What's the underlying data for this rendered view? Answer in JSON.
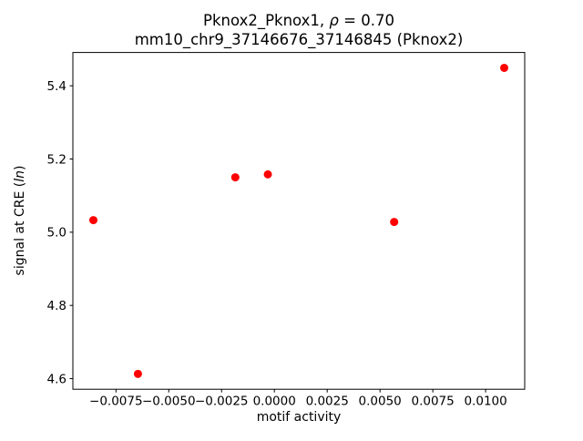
{
  "figure": {
    "title_line1_prefix": "Pknox2_Pknox1, ",
    "title_rho": "ρ",
    "title_line1_suffix": " = 0.70",
    "title_line2": "mm10_chr9_37146676_37146845 (Pknox2)",
    "xlabel": "motif activity",
    "ylabel_prefix": "signal at CRE (",
    "ylabel_italic": "ln",
    "ylabel_suffix": ")"
  },
  "chart_data": {
    "type": "scatter",
    "title": "Pknox2_Pknox1, ρ = 0.70\nmm10_chr9_37146676_37146845 (Pknox2)",
    "xlabel": "motif activity",
    "ylabel": "signal at CRE (ln)",
    "legend": null,
    "grid": false,
    "marker_color": "#ff0000",
    "marker_radius": 4.5,
    "x": [
      -0.00857,
      -0.00646,
      -0.00185,
      -0.00031,
      0.00567,
      0.01088
    ],
    "y": [
      5.033,
      4.613,
      5.15,
      5.158,
      5.028,
      5.449
    ],
    "xlim": [
      -0.00954,
      0.01185
    ],
    "ylim": [
      4.571,
      5.491
    ],
    "x_tick_values": [
      -0.0075,
      -0.005,
      -0.0025,
      0.0,
      0.0025,
      0.005,
      0.0075,
      0.01
    ],
    "x_tick_labels": [
      "−0.0075",
      "−0.0050",
      "−0.0025",
      "0.0000",
      "0.0025",
      "0.0050",
      "0.0075",
      "0.0100"
    ],
    "y_tick_values": [
      4.6,
      4.8,
      5.0,
      5.2,
      5.4
    ],
    "y_tick_labels": [
      "4.6",
      "4.8",
      "5.0",
      "5.2",
      "5.4"
    ]
  }
}
